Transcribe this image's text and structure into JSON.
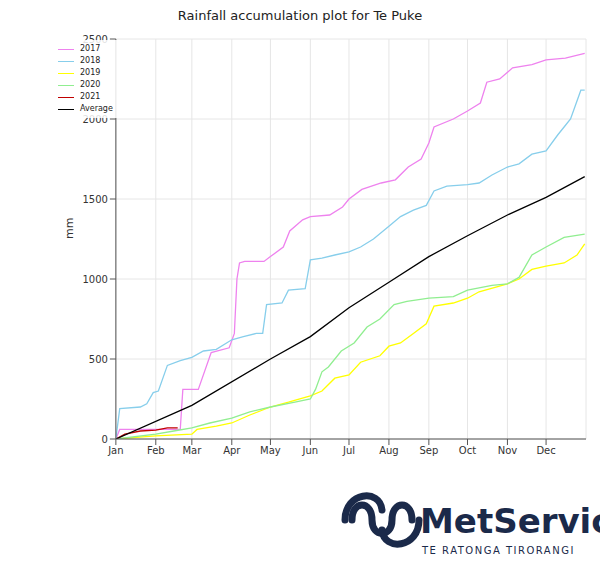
{
  "chart_data": {
    "type": "line",
    "title": "Rainfall accumulation plot for Te Puke",
    "y_label": "mm",
    "annotations": [
      "MetService",
      "TE RATONGA TIRORANGI"
    ],
    "xlim": [
      0,
      365
    ],
    "xticks": [
      {
        "value": 0,
        "label": "Jan"
      },
      {
        "value": 31,
        "label": "Feb"
      },
      {
        "value": 59,
        "label": "Mar"
      },
      {
        "value": 90,
        "label": "Apr"
      },
      {
        "value": 120,
        "label": "May"
      },
      {
        "value": 151,
        "label": "Jun"
      },
      {
        "value": 181,
        "label": "Jul"
      },
      {
        "value": 212,
        "label": "Aug"
      },
      {
        "value": 243,
        "label": "Sep"
      },
      {
        "value": 273,
        "label": "Oct"
      },
      {
        "value": 304,
        "label": "Nov"
      },
      {
        "value": 334,
        "label": "Dec"
      }
    ],
    "ylim": [
      0,
      2500
    ],
    "yticks": [
      0,
      500,
      1000,
      1500,
      2000,
      2500
    ],
    "grid": true,
    "legend": "upper left",
    "series": [
      {
        "name": "2017",
        "color": "#ee82ee",
        "x": [
          0,
          3,
          50,
          52,
          64,
          74,
          88,
          92,
          94,
          96,
          100,
          115,
          120,
          130,
          135,
          145,
          151,
          166,
          176,
          181,
          191,
          206,
          217,
          227,
          237,
          243,
          247,
          262,
          273,
          283,
          288,
          298,
          308,
          323,
          334,
          349,
          364
        ],
        "values": [
          0,
          60,
          60,
          310,
          310,
          540,
          570,
          660,
          1000,
          1100,
          1110,
          1110,
          1140,
          1200,
          1300,
          1370,
          1390,
          1400,
          1450,
          1500,
          1560,
          1600,
          1620,
          1700,
          1750,
          1850,
          1950,
          2000,
          2050,
          2100,
          2230,
          2250,
          2320,
          2340,
          2370,
          2380,
          2410
        ]
      },
      {
        "name": "2018",
        "color": "#87ceeb",
        "x": [
          0,
          3,
          19,
          24,
          29,
          33,
          40,
          50,
          59,
          68,
          78,
          90,
          99,
          109,
          114,
          117,
          129,
          134,
          147,
          151,
          160,
          170,
          181,
          190,
          200,
          212,
          221,
          231,
          241,
          247,
          257,
          273,
          282,
          292,
          304,
          313,
          323,
          334,
          343,
          348,
          353,
          361,
          364
        ],
        "values": [
          0,
          190,
          200,
          220,
          290,
          300,
          460,
          490,
          510,
          550,
          560,
          620,
          640,
          660,
          660,
          840,
          850,
          930,
          940,
          1120,
          1130,
          1150,
          1170,
          1200,
          1250,
          1330,
          1390,
          1430,
          1460,
          1550,
          1580,
          1590,
          1600,
          1650,
          1700,
          1720,
          1780,
          1800,
          1900,
          1950,
          2000,
          2180,
          2180
        ]
      },
      {
        "name": "2019",
        "color": "#ffff00",
        "x": [
          0,
          31,
          59,
          63,
          78,
          90,
          104,
          120,
          134,
          151,
          160,
          170,
          181,
          190,
          205,
          212,
          221,
          231,
          241,
          247,
          262,
          273,
          282,
          304,
          313,
          323,
          334,
          348,
          358,
          364
        ],
        "values": [
          0,
          20,
          30,
          60,
          80,
          100,
          150,
          200,
          230,
          270,
          300,
          380,
          400,
          480,
          520,
          580,
          600,
          660,
          720,
          830,
          850,
          880,
          920,
          970,
          1000,
          1060,
          1080,
          1100,
          1150,
          1220
        ]
      },
      {
        "name": "2020",
        "color": "#90ee90",
        "x": [
          0,
          31,
          45,
          59,
          73,
          90,
          104,
          120,
          139,
          151,
          155,
          160,
          165,
          175,
          185,
          195,
          205,
          216,
          226,
          243,
          262,
          273,
          292,
          304,
          313,
          323,
          334,
          348,
          364
        ],
        "values": [
          0,
          30,
          50,
          70,
          100,
          130,
          170,
          200,
          230,
          250,
          310,
          420,
          450,
          550,
          600,
          700,
          750,
          840,
          860,
          880,
          890,
          930,
          960,
          970,
          1010,
          1150,
          1200,
          1260,
          1280
        ]
      },
      {
        "name": "2021",
        "color": "#c00000",
        "x": [
          0,
          7,
          19,
          31,
          40,
          48
        ],
        "values": [
          0,
          30,
          50,
          55,
          70,
          70
        ]
      },
      {
        "name": "Average",
        "color": "#000000",
        "x": [
          0,
          59,
          120,
          151,
          181,
          212,
          243,
          273,
          304,
          334,
          364
        ],
        "values": [
          0,
          210,
          500,
          640,
          820,
          980,
          1140,
          1270,
          1400,
          1510,
          1640
        ]
      }
    ]
  }
}
